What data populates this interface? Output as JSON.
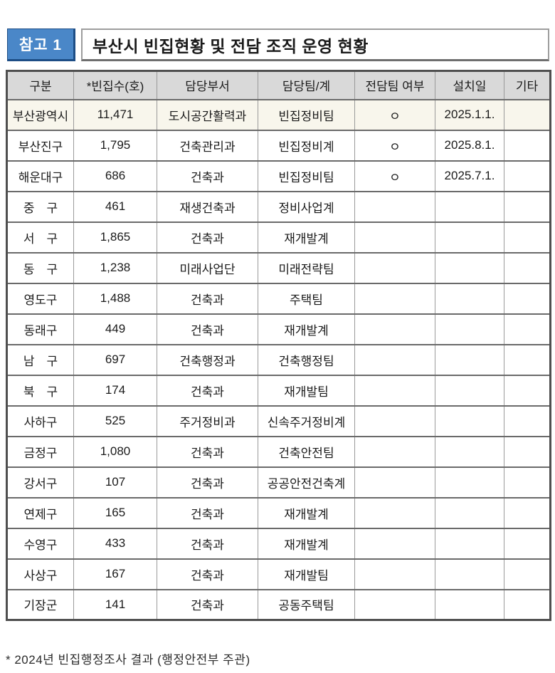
{
  "header": {
    "badge_label": "참고 1",
    "title": "부산시 빈집현황 및 전담 조직 운영 현황"
  },
  "colors": {
    "badge_bg": "#4a87c8",
    "badge_border": "#1d4d85",
    "table_header_bg": "#d9d9d9",
    "highlight_row_bg": "#f8f6ec"
  },
  "table": {
    "columns": [
      "구분",
      "*빈집수(호)",
      "담당부서",
      "담당팀/계",
      "전담팀 여부",
      "설치일",
      "기타"
    ],
    "rows": [
      {
        "district": "부산광역시",
        "count": "11,471",
        "dept": "도시공간활력과",
        "team": "빈집정비팀",
        "dedicated": "ㅇ",
        "installed": "2025.1.1.",
        "etc": "",
        "highlight": true
      },
      {
        "district": "부산진구",
        "count": "1,795",
        "dept": "건축관리과",
        "team": "빈집정비계",
        "dedicated": "ㅇ",
        "installed": "2025.8.1.",
        "etc": "",
        "highlight": false
      },
      {
        "district": "해운대구",
        "count": "686",
        "dept": "건축과",
        "team": "빈집정비팀",
        "dedicated": "ㅇ",
        "installed": "2025.7.1.",
        "etc": "",
        "highlight": false
      },
      {
        "district": "중　구",
        "count": "461",
        "dept": "재생건축과",
        "team": "정비사업계",
        "dedicated": "",
        "installed": "",
        "etc": "",
        "highlight": false
      },
      {
        "district": "서　구",
        "count": "1,865",
        "dept": "건축과",
        "team": "재개발계",
        "dedicated": "",
        "installed": "",
        "etc": "",
        "highlight": false
      },
      {
        "district": "동　구",
        "count": "1,238",
        "dept": "미래사업단",
        "team": "미래전략팀",
        "dedicated": "",
        "installed": "",
        "etc": "",
        "highlight": false
      },
      {
        "district": "영도구",
        "count": "1,488",
        "dept": "건축과",
        "team": "주택팀",
        "dedicated": "",
        "installed": "",
        "etc": "",
        "highlight": false
      },
      {
        "district": "동래구",
        "count": "449",
        "dept": "건축과",
        "team": "재개발계",
        "dedicated": "",
        "installed": "",
        "etc": "",
        "highlight": false
      },
      {
        "district": "남　구",
        "count": "697",
        "dept": "건축행정과",
        "team": "건축행정팀",
        "dedicated": "",
        "installed": "",
        "etc": "",
        "highlight": false
      },
      {
        "district": "북　구",
        "count": "174",
        "dept": "건축과",
        "team": "재개발팀",
        "dedicated": "",
        "installed": "",
        "etc": "",
        "highlight": false
      },
      {
        "district": "사하구",
        "count": "525",
        "dept": "주거정비과",
        "team": "신속주거정비계",
        "dedicated": "",
        "installed": "",
        "etc": "",
        "highlight": false
      },
      {
        "district": "금정구",
        "count": "1,080",
        "dept": "건축과",
        "team": "건축안전팀",
        "dedicated": "",
        "installed": "",
        "etc": "",
        "highlight": false
      },
      {
        "district": "강서구",
        "count": "107",
        "dept": "건축과",
        "team": "공공안전건축계",
        "dedicated": "",
        "installed": "",
        "etc": "",
        "highlight": false
      },
      {
        "district": "연제구",
        "count": "165",
        "dept": "건축과",
        "team": "재개발계",
        "dedicated": "",
        "installed": "",
        "etc": "",
        "highlight": false
      },
      {
        "district": "수영구",
        "count": "433",
        "dept": "건축과",
        "team": "재개발계",
        "dedicated": "",
        "installed": "",
        "etc": "",
        "highlight": false
      },
      {
        "district": "사상구",
        "count": "167",
        "dept": "건축과",
        "team": "재개발팀",
        "dedicated": "",
        "installed": "",
        "etc": "",
        "highlight": false
      },
      {
        "district": "기장군",
        "count": "141",
        "dept": "건축과",
        "team": "공동주택팀",
        "dedicated": "",
        "installed": "",
        "etc": "",
        "highlight": false
      }
    ]
  },
  "footnote": "* 2024년 빈집행정조사 결과 (행정안전부 주관)"
}
